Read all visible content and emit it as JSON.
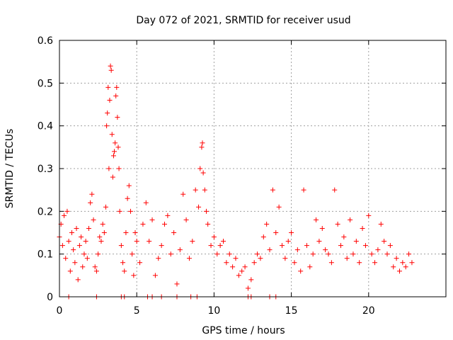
{
  "chart_data": {
    "type": "scatter",
    "title": "Day 072 of 2021, SRMTID for receiver usud",
    "xlabel": "GPS time / hours",
    "ylabel": "SRMTID / TECUs",
    "xlim": [
      0,
      25
    ],
    "ylim": [
      0,
      0.6
    ],
    "xticks": [
      0,
      5,
      10,
      15,
      20
    ],
    "yticks": [
      0,
      0.1,
      0.2,
      0.3,
      0.4,
      0.5,
      0.6
    ],
    "xtick_labels": [
      "0",
      "5",
      "10",
      "15",
      "20"
    ],
    "ytick_labels": [
      "0",
      "0.1",
      "0.2",
      "0.3",
      "0.4",
      "0.5",
      "0.6"
    ],
    "grid": true,
    "marker": "plus",
    "color": "#ff0000",
    "series": [
      {
        "name": "SRMTID",
        "points": [
          [
            0.0,
            0.14
          ],
          [
            0.1,
            0.17
          ],
          [
            0.2,
            0.12
          ],
          [
            0.3,
            0.19
          ],
          [
            0.4,
            0.09
          ],
          [
            0.5,
            0.2
          ],
          [
            0.6,
            0.13
          ],
          [
            0.7,
            0.06
          ],
          [
            0.8,
            0.15
          ],
          [
            0.9,
            0.11
          ],
          [
            1.0,
            0.08
          ],
          [
            1.1,
            0.16
          ],
          [
            1.2,
            0.04
          ],
          [
            1.3,
            0.12
          ],
          [
            1.4,
            0.14
          ],
          [
            1.5,
            0.07
          ],
          [
            1.6,
            0.1
          ],
          [
            1.7,
            0.13
          ],
          [
            1.8,
            0.09
          ],
          [
            1.9,
            0.16
          ],
          [
            2.0,
            0.22
          ],
          [
            2.1,
            0.24
          ],
          [
            2.2,
            0.18
          ],
          [
            2.3,
            0.07
          ],
          [
            2.4,
            0.06
          ],
          [
            2.5,
            0.1
          ],
          [
            2.6,
            0.14
          ],
          [
            2.7,
            0.13
          ],
          [
            2.8,
            0.17
          ],
          [
            2.9,
            0.15
          ],
          [
            3.0,
            0.21
          ],
          [
            3.05,
            0.4
          ],
          [
            3.1,
            0.43
          ],
          [
            3.15,
            0.49
          ],
          [
            3.2,
            0.3
          ],
          [
            3.25,
            0.46
          ],
          [
            3.3,
            0.54
          ],
          [
            3.35,
            0.53
          ],
          [
            3.4,
            0.38
          ],
          [
            3.45,
            0.28
          ],
          [
            3.5,
            0.33
          ],
          [
            3.55,
            0.34
          ],
          [
            3.6,
            0.36
          ],
          [
            3.65,
            0.47
          ],
          [
            3.7,
            0.49
          ],
          [
            3.75,
            0.42
          ],
          [
            3.8,
            0.35
          ],
          [
            3.85,
            0.3
          ],
          [
            3.9,
            0.2
          ],
          [
            4.0,
            0.12
          ],
          [
            4.1,
            0.08
          ],
          [
            4.2,
            0.06
          ],
          [
            4.3,
            0.15
          ],
          [
            4.4,
            0.23
          ],
          [
            4.5,
            0.26
          ],
          [
            4.6,
            0.2
          ],
          [
            4.7,
            0.1
          ],
          [
            4.8,
            0.05
          ],
          [
            4.9,
            0.15
          ],
          [
            5.0,
            0.13
          ],
          [
            5.2,
            0.08
          ],
          [
            5.4,
            0.17
          ],
          [
            5.6,
            0.22
          ],
          [
            5.8,
            0.13
          ],
          [
            6.0,
            0.18
          ],
          [
            6.2,
            0.05
          ],
          [
            6.4,
            0.09
          ],
          [
            6.6,
            0.12
          ],
          [
            6.8,
            0.17
          ],
          [
            7.0,
            0.19
          ],
          [
            7.2,
            0.1
          ],
          [
            7.4,
            0.15
          ],
          [
            7.6,
            0.03
          ],
          [
            7.8,
            0.11
          ],
          [
            8.0,
            0.24
          ],
          [
            8.2,
            0.18
          ],
          [
            8.4,
            0.09
          ],
          [
            8.6,
            0.13
          ],
          [
            8.8,
            0.25
          ],
          [
            9.0,
            0.21
          ],
          [
            9.1,
            0.3
          ],
          [
            9.2,
            0.35
          ],
          [
            9.25,
            0.36
          ],
          [
            9.3,
            0.29
          ],
          [
            9.4,
            0.25
          ],
          [
            9.5,
            0.2
          ],
          [
            9.6,
            0.17
          ],
          [
            9.8,
            0.12
          ],
          [
            10.0,
            0.14
          ],
          [
            10.2,
            0.1
          ],
          [
            10.4,
            0.12
          ],
          [
            10.6,
            0.13
          ],
          [
            10.8,
            0.08
          ],
          [
            11.0,
            0.1
          ],
          [
            11.2,
            0.07
          ],
          [
            11.4,
            0.09
          ],
          [
            11.6,
            0.05
          ],
          [
            11.8,
            0.06
          ],
          [
            12.0,
            0.07
          ],
          [
            12.2,
            0.02
          ],
          [
            12.4,
            0.04
          ],
          [
            12.6,
            0.08
          ],
          [
            12.8,
            0.1
          ],
          [
            13.0,
            0.09
          ],
          [
            13.2,
            0.14
          ],
          [
            13.4,
            0.17
          ],
          [
            13.6,
            0.11
          ],
          [
            13.8,
            0.25
          ],
          [
            14.0,
            0.15
          ],
          [
            14.2,
            0.21
          ],
          [
            14.4,
            0.12
          ],
          [
            14.6,
            0.09
          ],
          [
            14.8,
            0.13
          ],
          [
            15.0,
            0.15
          ],
          [
            15.2,
            0.08
          ],
          [
            15.4,
            0.11
          ],
          [
            15.6,
            0.06
          ],
          [
            15.8,
            0.25
          ],
          [
            16.0,
            0.12
          ],
          [
            16.2,
            0.07
          ],
          [
            16.4,
            0.1
          ],
          [
            16.6,
            0.18
          ],
          [
            16.8,
            0.13
          ],
          [
            17.0,
            0.16
          ],
          [
            17.2,
            0.11
          ],
          [
            17.4,
            0.1
          ],
          [
            17.6,
            0.08
          ],
          [
            17.8,
            0.25
          ],
          [
            18.0,
            0.17
          ],
          [
            18.2,
            0.12
          ],
          [
            18.4,
            0.14
          ],
          [
            18.6,
            0.09
          ],
          [
            18.8,
            0.18
          ],
          [
            19.0,
            0.1
          ],
          [
            19.2,
            0.13
          ],
          [
            19.4,
            0.08
          ],
          [
            19.6,
            0.16
          ],
          [
            19.8,
            0.12
          ],
          [
            20.0,
            0.19
          ],
          [
            20.2,
            0.1
          ],
          [
            20.4,
            0.08
          ],
          [
            20.6,
            0.11
          ],
          [
            20.8,
            0.17
          ],
          [
            21.0,
            0.13
          ],
          [
            21.2,
            0.1
          ],
          [
            21.4,
            0.12
          ],
          [
            21.6,
            0.07
          ],
          [
            21.8,
            0.09
          ],
          [
            22.0,
            0.06
          ],
          [
            22.2,
            0.08
          ],
          [
            22.4,
            0.07
          ],
          [
            22.6,
            0.1
          ],
          [
            22.8,
            0.08
          ],
          [
            0.6,
            0.0
          ],
          [
            2.4,
            0.0
          ],
          [
            4.0,
            0.0
          ],
          [
            4.2,
            0.0
          ],
          [
            5.7,
            0.0
          ],
          [
            6.0,
            0.0
          ],
          [
            6.6,
            0.0
          ],
          [
            7.6,
            0.0
          ],
          [
            8.5,
            0.0
          ],
          [
            8.9,
            0.0
          ],
          [
            12.2,
            0.0
          ],
          [
            12.4,
            0.0
          ],
          [
            13.6,
            0.0
          ],
          [
            14.0,
            0.0
          ]
        ]
      }
    ]
  }
}
